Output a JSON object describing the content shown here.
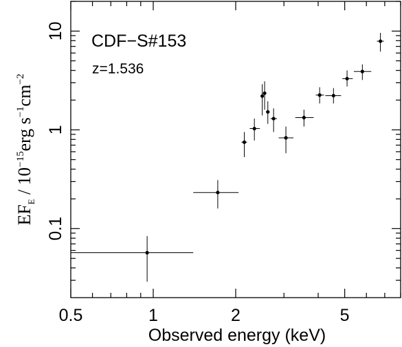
{
  "chart_data": {
    "type": "scatter",
    "xscale": "log",
    "yscale": "log",
    "xlim": [
      0.5,
      8.0
    ],
    "ylim": [
      0.02,
      20
    ],
    "xticks": [
      {
        "value": 0.5,
        "label": "0.5"
      },
      {
        "value": 1,
        "label": "1"
      },
      {
        "value": 2,
        "label": "2"
      },
      {
        "value": 5,
        "label": "5"
      }
    ],
    "xminor": [
      0.6,
      0.7,
      0.8,
      0.9,
      3,
      4,
      6,
      7,
      8
    ],
    "yticks": [
      {
        "value": 0.1,
        "label": "0.1"
      },
      {
        "value": 1,
        "label": "1"
      },
      {
        "value": 10,
        "label": "10"
      }
    ],
    "yminor": [
      0.03,
      0.04,
      0.05,
      0.06,
      0.07,
      0.08,
      0.09,
      0.2,
      0.3,
      0.4,
      0.5,
      0.6,
      0.7,
      0.8,
      0.9,
      2,
      3,
      4,
      5,
      6,
      7,
      8,
      9,
      20
    ],
    "xlabel": "Observed energy (keV)",
    "ylabel": {
      "main": "EF",
      "sub": "E",
      "rest": " / 10",
      "exp1": "−15",
      "mid": "erg s",
      "exp2": "−1",
      "mid2": "cm",
      "exp3": "−2"
    },
    "annotations": {
      "title": "CDF−S#153",
      "redshift": "z=1.536"
    },
    "points": [
      {
        "x": 0.95,
        "y": 0.057,
        "xlo": 0.5,
        "xhi": 1.4,
        "ylo": 0.029,
        "yhi": 0.084
      },
      {
        "x": 1.72,
        "y": 0.232,
        "xlo": 1.4,
        "xhi": 2.05,
        "ylo": 0.16,
        "yhi": 0.31
      },
      {
        "x": 2.15,
        "y": 0.75,
        "xlo": 2.1,
        "xhi": 2.2,
        "ylo": 0.53,
        "yhi": 0.95
      },
      {
        "x": 2.34,
        "y": 1.03,
        "xlo": 2.25,
        "xhi": 2.45,
        "ylo": 0.78,
        "yhi": 1.3
      },
      {
        "x": 2.5,
        "y": 2.2,
        "xlo": 2.47,
        "xhi": 2.53,
        "ylo": 1.4,
        "yhi": 2.9
      },
      {
        "x": 2.55,
        "y": 2.35,
        "xlo": 2.53,
        "xhi": 2.57,
        "ylo": 1.6,
        "yhi": 3.1
      },
      {
        "x": 2.62,
        "y": 1.52,
        "xlo": 2.58,
        "xhi": 2.66,
        "ylo": 1.15,
        "yhi": 1.95
      },
      {
        "x": 2.75,
        "y": 1.3,
        "xlo": 2.68,
        "xhi": 2.83,
        "ylo": 0.95,
        "yhi": 1.65
      },
      {
        "x": 3.05,
        "y": 0.83,
        "xlo": 2.87,
        "xhi": 3.25,
        "ylo": 0.58,
        "yhi": 1.08
      },
      {
        "x": 3.55,
        "y": 1.33,
        "xlo": 3.3,
        "xhi": 3.85,
        "ylo": 1.08,
        "yhi": 1.6
      },
      {
        "x": 4.05,
        "y": 2.25,
        "xlo": 3.92,
        "xhi": 4.2,
        "ylo": 1.85,
        "yhi": 2.7
      },
      {
        "x": 4.55,
        "y": 2.22,
        "xlo": 4.25,
        "xhi": 4.85,
        "ylo": 1.85,
        "yhi": 2.65
      },
      {
        "x": 5.1,
        "y": 3.3,
        "xlo": 4.9,
        "xhi": 5.35,
        "ylo": 2.75,
        "yhi": 4.0
      },
      {
        "x": 5.8,
        "y": 3.9,
        "xlo": 5.4,
        "xhi": 6.25,
        "ylo": 3.2,
        "yhi": 4.6
      },
      {
        "x": 6.75,
        "y": 7.9,
        "xlo": 6.55,
        "xhi": 6.95,
        "ylo": 6.2,
        "yhi": 9.6
      }
    ]
  }
}
